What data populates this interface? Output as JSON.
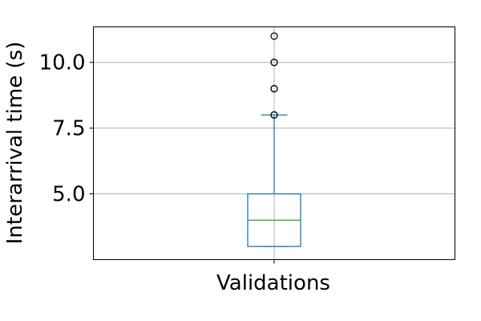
{
  "chart_data": {
    "type": "box",
    "xlabel": "Validations",
    "ylabel": "Interarrival time (s)",
    "categories": [
      "Validations"
    ],
    "ylim": [
      2.5,
      11.35
    ],
    "yticks": [
      5.0,
      7.5,
      10.0
    ],
    "ytick_labels": [
      "5.0",
      "7.5",
      "10.0"
    ],
    "grid": true,
    "series": [
      {
        "category": "Validations",
        "whisker_low": 3,
        "q1": 3,
        "median": 4,
        "q3": 5,
        "whisker_high": 8,
        "outliers": [
          8,
          8,
          9,
          9,
          10,
          10,
          11
        ]
      }
    ],
    "colors": {
      "box": "#1f77b4",
      "median": "#2ca02c",
      "outlier": "#000000",
      "grid": "#b0b0b0"
    }
  }
}
